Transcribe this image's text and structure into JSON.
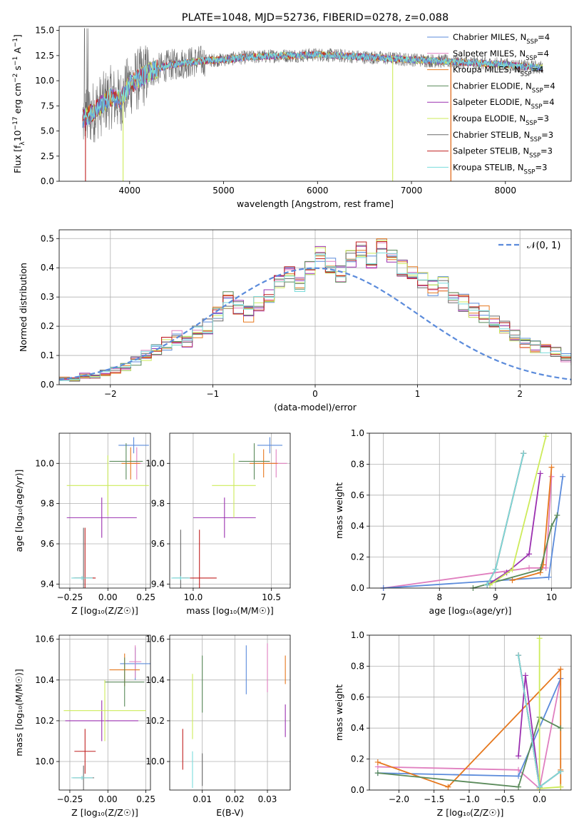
{
  "colors": {
    "chabrier_miles": "#5b8bdb",
    "salpeter_miles": "#e07fbf",
    "kroupa_miles": "#e6781e",
    "chabrier_elodie": "#5a8a5a",
    "salpeter_elodie": "#9b30b0",
    "kroupa_elodie": "#cdeb5a",
    "chabrier_stelib": "#6a6a6a",
    "salpeter_stelib": "#c02020",
    "kroupa_stelib": "#7adcdc"
  },
  "chart_data": [
    {
      "id": "spectrum",
      "type": "line",
      "title": "PLATE=1048, MJD=52736, FIBERID=0278, z=0.088",
      "xlabel": "wavelength [Angstrom, rest frame]",
      "ylabel": "Flux [f_λ10^-17 erg cm^-2 s^-1 A^-1]",
      "xlim": [
        3250,
        8700
      ],
      "ylim": [
        0,
        15.4
      ],
      "xticks": [
        4000,
        5000,
        6000,
        7000,
        8000
      ],
      "yticks": [
        0.0,
        2.5,
        5.0,
        7.5,
        10.0,
        12.5,
        15.0
      ],
      "grid": false,
      "legend_position": "right",
      "legend": [
        {
          "label": "Chabrier MILES, N",
          "sub": "SSP",
          "suffix": "=4",
          "color_key": "chabrier_miles"
        },
        {
          "label": "Salpeter MILES, N",
          "sub": "SSP",
          "suffix": "=4",
          "color_key": "salpeter_miles"
        },
        {
          "label": "Kroupa MILES, N",
          "sub": "SSP",
          "suffix": "=4",
          "color_key": "kroupa_miles"
        },
        {
          "label": "Chabrier ELODIE, N",
          "sub": "SSP",
          "suffix": "=4",
          "color_key": "chabrier_elodie"
        },
        {
          "label": "Salpeter ELODIE, N",
          "sub": "SSP",
          "suffix": "=4",
          "color_key": "salpeter_elodie"
        },
        {
          "label": "Kroupa ELODIE, N",
          "sub": "SSP",
          "suffix": "=3",
          "color_key": "kroupa_elodie"
        },
        {
          "label": "Chabrier STELIB, N",
          "sub": "SSP",
          "suffix": "=3",
          "color_key": "chabrier_stelib"
        },
        {
          "label": "Salpeter STELIB, N",
          "sub": "SSP",
          "suffix": "=3",
          "color_key": "salpeter_stelib"
        },
        {
          "label": "Kroupa STELIB, N",
          "sub": "SSP",
          "suffix": "=3",
          "color_key": "kroupa_stelib"
        }
      ],
      "continuum": {
        "x": [
          3500,
          3600,
          3700,
          3800,
          3900,
          4000,
          4100,
          4200,
          4400,
          4600,
          4800,
          5000,
          5200,
          5400,
          5600,
          5800,
          6000,
          6200,
          6400,
          6600,
          6800,
          7000,
          7200,
          7400,
          7600,
          7800,
          8000,
          8200,
          8400
        ],
        "y": [
          6.2,
          6.8,
          7.6,
          8.4,
          8.0,
          9.6,
          10.2,
          10.8,
          11.5,
          11.8,
          12.0,
          12.1,
          12.3,
          12.4,
          12.5,
          12.5,
          12.6,
          12.5,
          12.4,
          12.3,
          12.2,
          12.1,
          12.0,
          11.9,
          11.8,
          11.7,
          11.6,
          11.4,
          11.3
        ]
      },
      "dips": [
        {
          "x": 3930,
          "y": 0.0,
          "color_key": "kroupa_elodie"
        },
        {
          "x": 6800,
          "y": 0.0,
          "color_key": "kroupa_elodie"
        },
        {
          "x": 7420,
          "y": 0.0,
          "color_key": "salpeter_stelib"
        },
        {
          "x": 7420,
          "y": 0.0,
          "color_key": "kroupa_miles"
        },
        {
          "x": 3530,
          "y": 0.0,
          "color_key": "salpeter_stelib"
        }
      ]
    },
    {
      "id": "residual_hist",
      "type": "histogram",
      "xlabel": "(data-model)/error",
      "ylabel": "Normed distribution",
      "xlim": [
        -2.5,
        2.5
      ],
      "ylim": [
        0,
        0.53
      ],
      "xticks": [
        -2,
        -1,
        0,
        1,
        2
      ],
      "yticks": [
        0.0,
        0.1,
        0.2,
        0.3,
        0.4,
        0.5
      ],
      "grid": true,
      "legend_position": "top-right",
      "legend": [
        {
          "label": "𝒩(0, 1)",
          "color_key": "chabrier_miles",
          "style": "dashed"
        }
      ],
      "bin_start": -2.5,
      "bin_width": 0.1,
      "base_values": [
        0.02,
        0.02,
        0.03,
        0.03,
        0.04,
        0.05,
        0.06,
        0.08,
        0.1,
        0.12,
        0.14,
        0.16,
        0.15,
        0.18,
        0.2,
        0.24,
        0.29,
        0.26,
        0.24,
        0.28,
        0.31,
        0.36,
        0.38,
        0.34,
        0.4,
        0.45,
        0.41,
        0.38,
        0.43,
        0.46,
        0.42,
        0.48,
        0.44,
        0.4,
        0.38,
        0.36,
        0.33,
        0.35,
        0.31,
        0.28,
        0.26,
        0.24,
        0.21,
        0.19,
        0.17,
        0.15,
        0.13,
        0.12,
        0.11,
        0.09,
        0.08,
        0.07,
        0.06,
        0.05,
        0.04,
        0.04,
        0.03,
        0.03,
        0.03,
        0.03
      ],
      "gaussian_curve": true
    },
    {
      "id": "z_vs_age",
      "type": "errorbar",
      "xlabel": "Z [log₁₀(Z/Z☉)]",
      "ylabel": "age  [log₁₀(age/yr)]",
      "xlim": [
        -0.32,
        0.28
      ],
      "ylim": [
        9.38,
        10.15
      ],
      "xticks": [
        -0.25,
        0.0,
        0.25
      ],
      "xticklabels": [
        "−0.25",
        "0.00",
        "0.25"
      ],
      "yticks": [
        9.4,
        9.6,
        9.8,
        10.0
      ],
      "grid": true,
      "points": [
        {
          "color_key": "chabrier_miles",
          "x": 0.17,
          "xerr": 0.1,
          "y": 10.09,
          "yerr": 0.04
        },
        {
          "color_key": "salpeter_miles",
          "x": 0.19,
          "xerr": 0.03,
          "y": 10.0,
          "yerr": 0.08
        },
        {
          "color_key": "kroupa_miles",
          "x": 0.15,
          "xerr": 0.06,
          "y": 10.0,
          "yerr": 0.08
        },
        {
          "color_key": "chabrier_elodie",
          "x": 0.12,
          "xerr": 0.11,
          "y": 10.01,
          "yerr": 0.09
        },
        {
          "color_key": "salpeter_elodie",
          "x": -0.04,
          "xerr": 0.23,
          "y": 9.73,
          "yerr": 0.1
        },
        {
          "color_key": "kroupa_elodie",
          "x": 0.0,
          "xerr": 0.27,
          "y": 9.89,
          "yerr": 0.15
        },
        {
          "color_key": "chabrier_stelib",
          "x": -0.16,
          "xerr": 0.07,
          "y": 9.43,
          "yerr": 0.25
        },
        {
          "color_key": "salpeter_stelib",
          "x": -0.15,
          "xerr": 0.07,
          "y": 9.43,
          "yerr": 0.25
        },
        {
          "color_key": "kroupa_stelib",
          "x": -0.17,
          "xerr": 0.07,
          "y": 9.43,
          "yerr": 0.01
        }
      ]
    },
    {
      "id": "mass_vs_age",
      "type": "errorbar",
      "xlabel": "mass [log₁₀(M/M☉)]",
      "ylabel": "",
      "xlim": [
        9.85,
        10.62
      ],
      "ylim": [
        9.38,
        10.15
      ],
      "xticks": [
        10.0,
        10.5
      ],
      "xticklabels": [
        "10.0",
        "10.5"
      ],
      "yticks": [
        9.4,
        9.6,
        9.8,
        10.0
      ],
      "grid": true,
      "points": [
        {
          "color_key": "chabrier_miles",
          "x": 10.49,
          "xerr": 0.08,
          "y": 10.09,
          "yerr": 0.04
        },
        {
          "color_key": "salpeter_miles",
          "x": 10.53,
          "xerr": 0.07,
          "y": 10.0,
          "yerr": 0.07
        },
        {
          "color_key": "kroupa_miles",
          "x": 10.45,
          "xerr": 0.09,
          "y": 10.0,
          "yerr": 0.07
        },
        {
          "color_key": "chabrier_elodie",
          "x": 10.39,
          "xerr": 0.1,
          "y": 10.01,
          "yerr": 0.09
        },
        {
          "color_key": "salpeter_elodie",
          "x": 10.2,
          "xerr": 0.2,
          "y": 9.73,
          "yerr": 0.1
        },
        {
          "color_key": "kroupa_elodie",
          "x": 10.26,
          "xerr": 0.14,
          "y": 9.89,
          "yerr": 0.16
        },
        {
          "color_key": "chabrier_stelib",
          "x": 9.92,
          "xerr": 0.05,
          "y": 9.43,
          "yerr": 0.24
        },
        {
          "color_key": "salpeter_stelib",
          "x": 10.04,
          "xerr": 0.11,
          "y": 9.43,
          "yerr": 0.24
        },
        {
          "color_key": "kroupa_stelib",
          "x": 9.92,
          "xerr": 0.06,
          "y": 9.43,
          "yerr": 0.01
        }
      ]
    },
    {
      "id": "age_vs_massweight",
      "type": "line",
      "xlabel": "age  [log₁₀(age/yr)]",
      "ylabel": "mass weight",
      "xlim": [
        6.75,
        10.35
      ],
      "ylim": [
        0,
        1.0
      ],
      "xticks": [
        7,
        8,
        9,
        10
      ],
      "yticks": [
        0.0,
        0.2,
        0.4,
        0.6,
        0.8,
        1.0
      ],
      "grid": true,
      "series": [
        {
          "color_key": "salpeter_miles",
          "x": [
            7.0,
            9.6,
            9.9,
            10.0
          ],
          "y": [
            0.0,
            0.13,
            0.13,
            0.72
          ]
        },
        {
          "color_key": "chabrier_miles",
          "x": [
            7.0,
            9.95,
            10.2
          ],
          "y": [
            0.0,
            0.07,
            0.72
          ]
        },
        {
          "color_key": "kroupa_miles",
          "x": [
            9.3,
            9.8,
            9.85,
            10.0
          ],
          "y": [
            0.05,
            0.1,
            0.15,
            0.78
          ]
        },
        {
          "color_key": "chabrier_elodie",
          "x": [
            8.6,
            9.8,
            10.0,
            10.1
          ],
          "y": [
            0.0,
            0.12,
            0.4,
            0.47
          ]
        },
        {
          "color_key": "salpeter_elodie",
          "x": [
            8.85,
            9.2,
            9.6,
            9.8
          ],
          "y": [
            0.02,
            0.1,
            0.22,
            0.74
          ]
        },
        {
          "color_key": "kroupa_elodie",
          "x": [
            8.9,
            9.3,
            9.9
          ],
          "y": [
            0.02,
            0.12,
            0.98
          ]
        },
        {
          "color_key": "chabrier_stelib",
          "x": [
            8.85,
            9.0,
            9.5
          ],
          "y": [
            0.02,
            0.12,
            0.87
          ]
        },
        {
          "color_key": "salpeter_stelib",
          "x": [
            8.85,
            9.0,
            9.5
          ],
          "y": [
            0.02,
            0.12,
            0.87
          ]
        },
        {
          "color_key": "kroupa_stelib",
          "x": [
            8.85,
            9.0,
            9.5
          ],
          "y": [
            0.02,
            0.12,
            0.87
          ]
        }
      ]
    },
    {
      "id": "z_vs_mass",
      "type": "errorbar",
      "xlabel": "Z [log₁₀(Z/Z☉)]",
      "ylabel": "mass [log₁₀(M/M☉)]",
      "xlim": [
        -0.32,
        0.28
      ],
      "ylim": [
        9.86,
        10.62
      ],
      "xticks": [
        -0.25,
        0.0,
        0.25
      ],
      "xticklabels": [
        "−0.25",
        "0.00",
        "0.25"
      ],
      "yticks": [
        10.0,
        10.2,
        10.4,
        10.6
      ],
      "grid": true,
      "points": [
        {
          "color_key": "chabrier_miles",
          "x": 0.18,
          "xerr": 0.1,
          "y": 10.48,
          "yerr": 0.08
        },
        {
          "color_key": "salpeter_miles",
          "x": 0.18,
          "xerr": 0.04,
          "y": 10.49,
          "yerr": 0.08
        },
        {
          "color_key": "kroupa_miles",
          "x": 0.11,
          "xerr": 0.1,
          "y": 10.45,
          "yerr": 0.08
        },
        {
          "color_key": "chabrier_elodie",
          "x": 0.11,
          "xerr": 0.13,
          "y": 10.39,
          "yerr": 0.12
        },
        {
          "color_key": "salpeter_elodie",
          "x": -0.04,
          "xerr": 0.24,
          "y": 10.2,
          "yerr": 0.1
        },
        {
          "color_key": "kroupa_elodie",
          "x": -0.02,
          "xerr": 0.27,
          "y": 10.25,
          "yerr": 0.15
        },
        {
          "color_key": "chabrier_stelib",
          "x": -0.16,
          "xerr": 0.07,
          "y": 9.92,
          "yerr": 0.06
        },
        {
          "color_key": "salpeter_stelib",
          "x": -0.15,
          "xerr": 0.07,
          "y": 10.05,
          "yerr": 0.11
        },
        {
          "color_key": "kroupa_stelib",
          "x": -0.17,
          "xerr": 0.07,
          "y": 9.92,
          "yerr": 0.01
        }
      ]
    },
    {
      "id": "ebv_vs_mass",
      "type": "errorbar",
      "xlabel": "E(B-V)",
      "ylabel": "",
      "xlim": [
        0.0,
        0.037
      ],
      "ylim": [
        9.86,
        10.62
      ],
      "xticks": [
        0.01,
        0.02,
        0.03
      ],
      "xticklabels": [
        "0.01",
        "0.02",
        "0.03"
      ],
      "yticks": [
        10.0,
        10.2,
        10.4,
        10.6
      ],
      "grid": true,
      "points": [
        {
          "color_key": "chabrier_miles",
          "x": 0.0235,
          "xerr": 0.0,
          "y": 10.45,
          "yerr": 0.12
        },
        {
          "color_key": "salpeter_miles",
          "x": 0.03,
          "xerr": 0.0,
          "y": 10.46,
          "yerr": 0.12
        },
        {
          "color_key": "kroupa_miles",
          "x": 0.0355,
          "xerr": 0.0,
          "y": 10.45,
          "yerr": 0.07
        },
        {
          "color_key": "chabrier_elodie",
          "x": 0.01,
          "xerr": 0.0,
          "y": 10.38,
          "yerr": 0.14
        },
        {
          "color_key": "salpeter_elodie",
          "x": 0.0355,
          "xerr": 0.0,
          "y": 10.2,
          "yerr": 0.08
        },
        {
          "color_key": "kroupa_elodie",
          "x": 0.007,
          "xerr": 0.0,
          "y": 10.27,
          "yerr": 0.16
        },
        {
          "color_key": "chabrier_stelib",
          "x": 0.01,
          "xerr": 0.0,
          "y": 9.96,
          "yerr": 0.08
        },
        {
          "color_key": "salpeter_stelib",
          "x": 0.004,
          "xerr": 0.0,
          "y": 10.06,
          "yerr": 0.1
        },
        {
          "color_key": "kroupa_stelib",
          "x": 0.007,
          "xerr": 0.0,
          "y": 9.96,
          "yerr": 0.09
        }
      ]
    },
    {
      "id": "z_vs_massweight",
      "type": "line",
      "xlabel": "Z [log₁₀(Z/Z☉)]",
      "ylabel": "mass weight",
      "xlim": [
        -2.42,
        0.45
      ],
      "ylim": [
        0,
        1.0
      ],
      "xticks": [
        -2.0,
        -1.5,
        -1.0,
        -0.5,
        0.0
      ],
      "xticklabels": [
        "−2.0",
        "−1.5",
        "−1.0",
        "−0.5",
        "0.0"
      ],
      "yticks": [
        0.0,
        0.2,
        0.4,
        0.6,
        0.8,
        1.0
      ],
      "grid": true,
      "series": [
        {
          "color_key": "salpeter_miles",
          "x": [
            -2.3,
            -0.3,
            0.0,
            0.3
          ],
          "y": [
            0.15,
            0.13,
            0.01,
            0.72
          ]
        },
        {
          "color_key": "chabrier_miles",
          "x": [
            -2.3,
            -0.3,
            0.3
          ],
          "y": [
            0.11,
            0.09,
            0.72
          ]
        },
        {
          "color_key": "kroupa_miles",
          "x": [
            -2.3,
            -1.3,
            0.3,
            0.3,
            0.3
          ],
          "y": [
            0.18,
            0.02,
            0.78,
            0.13,
            0.02
          ]
        },
        {
          "color_key": "chabrier_elodie",
          "x": [
            -2.3,
            -0.3,
            0.0,
            0.3
          ],
          "y": [
            0.11,
            0.02,
            0.47,
            0.4
          ]
        },
        {
          "color_key": "salpeter_elodie",
          "x": [
            -0.3,
            -0.2,
            0.0
          ],
          "y": [
            0.22,
            0.74,
            0.02
          ]
        },
        {
          "color_key": "kroupa_elodie",
          "x": [
            0.0,
            0.0,
            0.3
          ],
          "y": [
            0.98,
            0.01,
            0.02
          ]
        },
        {
          "color_key": "chabrier_stelib",
          "x": [
            -0.3,
            0.0,
            0.3
          ],
          "y": [
            0.87,
            0.02,
            0.12
          ]
        },
        {
          "color_key": "salpeter_stelib",
          "x": [
            -0.3,
            0.0,
            0.3
          ],
          "y": [
            0.87,
            0.02,
            0.12
          ]
        },
        {
          "color_key": "kroupa_stelib",
          "x": [
            -0.3,
            0.0,
            0.3
          ],
          "y": [
            0.87,
            0.02,
            0.12
          ]
        }
      ]
    }
  ]
}
